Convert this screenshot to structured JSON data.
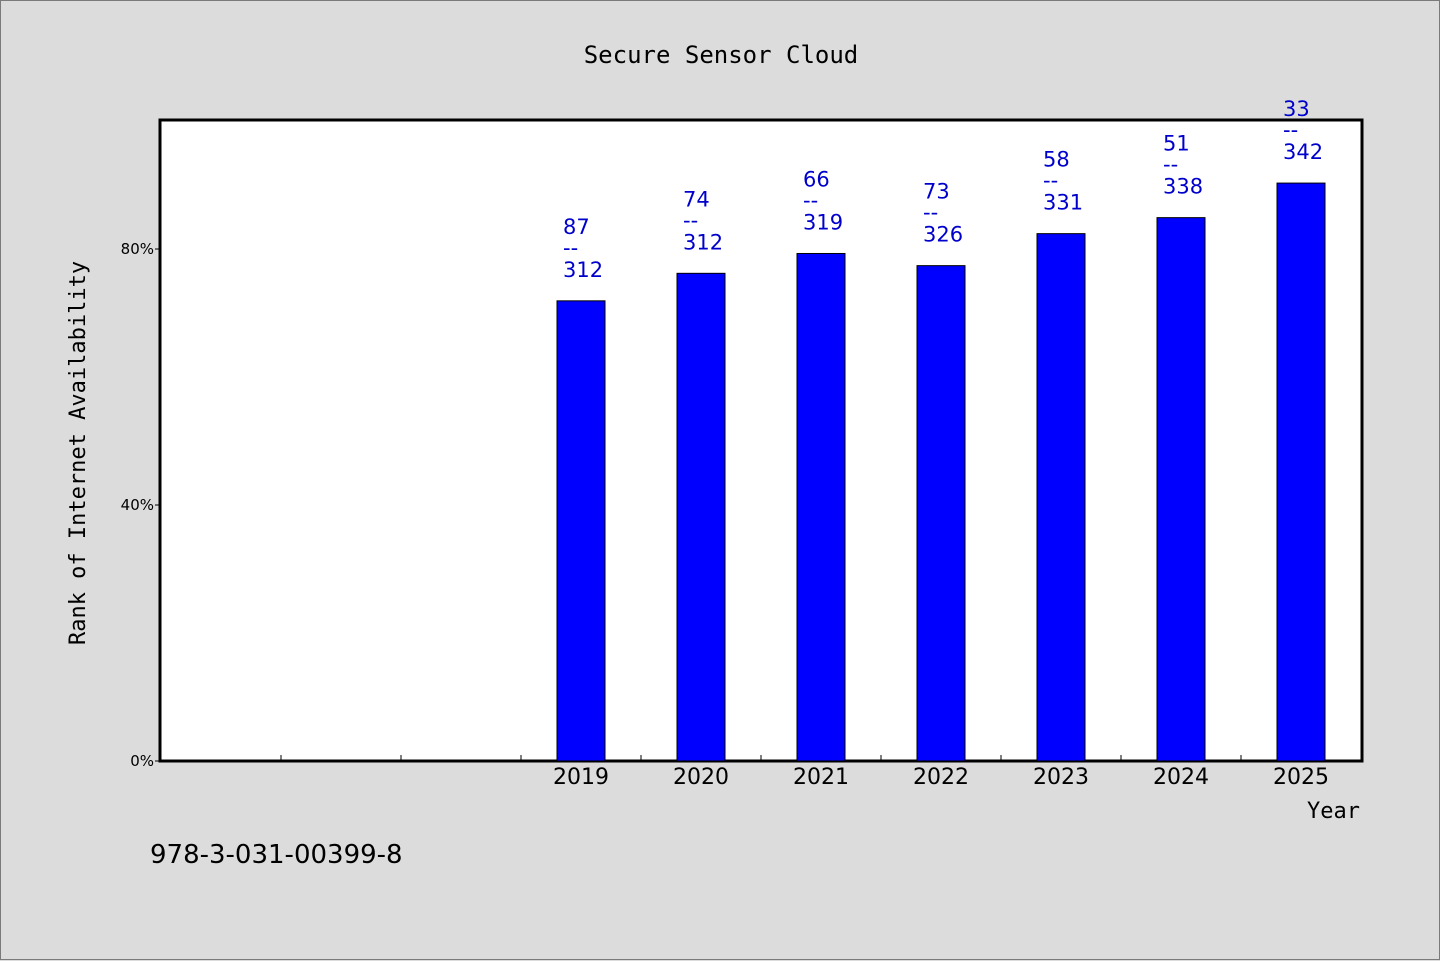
{
  "chart_data": {
    "type": "bar",
    "title": "Secure Sensor Cloud",
    "xlabel": "Year",
    "ylabel": "Rank of Internet Availability",
    "categories": [
      "2019",
      "2020",
      "2021",
      "2022",
      "2023",
      "2024",
      "2025"
    ],
    "values": [
      71.9,
      76.2,
      79.3,
      77.4,
      82.4,
      84.9,
      90.3
    ],
    "bar_labels": [
      {
        "top": "87",
        "sep": "--",
        "bottom": "312"
      },
      {
        "top": "74",
        "sep": "--",
        "bottom": "312"
      },
      {
        "top": "66",
        "sep": "--",
        "bottom": "319"
      },
      {
        "top": "73",
        "sep": "--",
        "bottom": "326"
      },
      {
        "top": "58",
        "sep": "--",
        "bottom": "331"
      },
      {
        "top": "51",
        "sep": "--",
        "bottom": "338"
      },
      {
        "top": "33",
        "sep": "--",
        "bottom": "342"
      }
    ],
    "y_ticks": [
      0,
      40,
      80
    ],
    "y_tick_labels": [
      "0%",
      "40%",
      "80%"
    ],
    "ylim": [
      0,
      100
    ],
    "empty_slots_before": 3,
    "grid": false,
    "bar_color": "#0000ff",
    "label_color": "#0000cc"
  },
  "footer_text": "978-3-031-00399-8"
}
